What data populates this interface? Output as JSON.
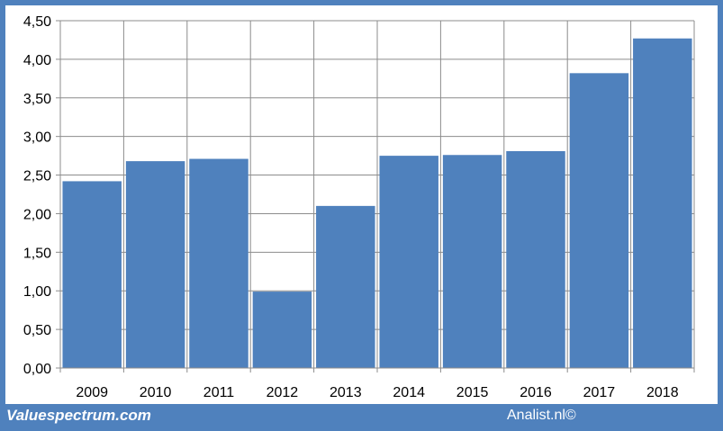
{
  "chart_data": {
    "type": "bar",
    "categories": [
      "2009",
      "2010",
      "2011",
      "2012",
      "2013",
      "2014",
      "2015",
      "2016",
      "2017",
      "2018"
    ],
    "values": [
      2.42,
      2.68,
      2.71,
      0.99,
      2.1,
      2.75,
      2.76,
      2.81,
      3.82,
      4.27
    ],
    "yticks": [
      "0,00",
      "0,50",
      "1,00",
      "1,50",
      "2,00",
      "2,50",
      "3,00",
      "3,50",
      "4,00",
      "4,50"
    ],
    "ylim": [
      0,
      4.5
    ],
    "grid": true,
    "bar_color": "#4f81bd"
  },
  "footer": {
    "source_left": "Valuespectrum.com",
    "source_right": "Analist.nl©"
  }
}
